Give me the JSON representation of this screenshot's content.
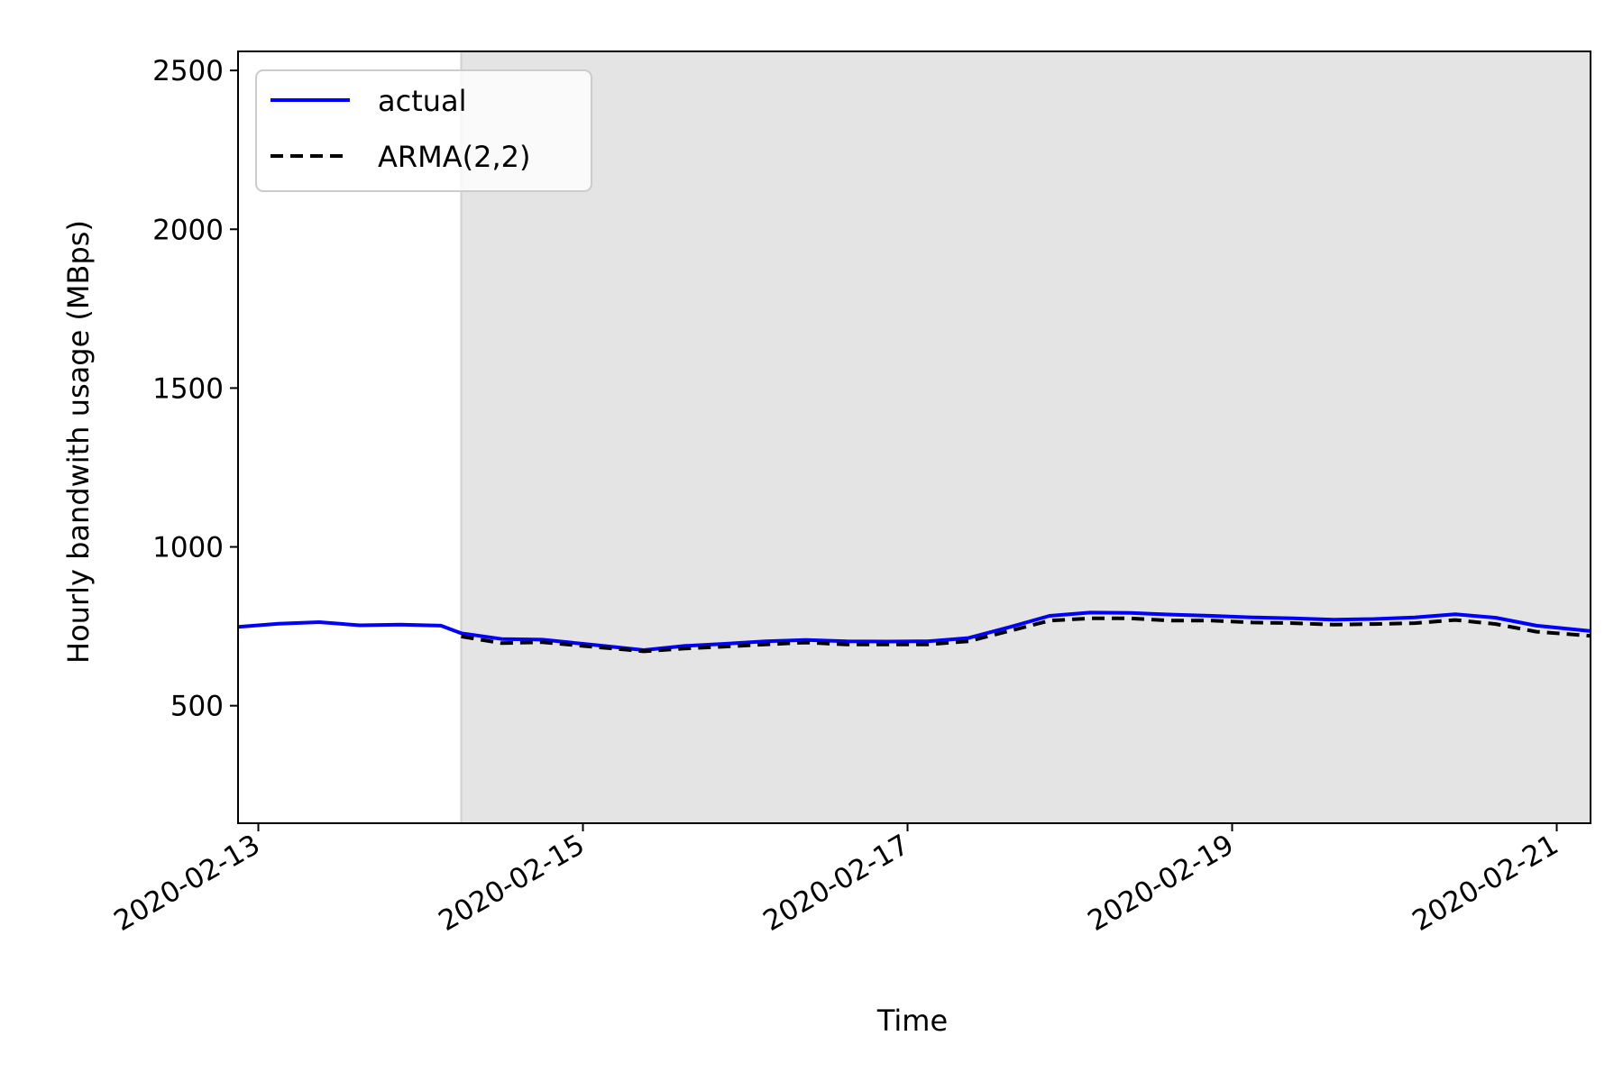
{
  "chart_data": {
    "type": "line",
    "title": "",
    "xlabel": "Time",
    "ylabel": "Hourly bandwith usage (MBps)",
    "x_tick_labels": [
      "2020-02-13",
      "2020-02-15",
      "2020-02-17",
      "2020-02-19",
      "2020-02-21"
    ],
    "y_tick_labels": [
      "500",
      "1000",
      "1500",
      "2000",
      "2500"
    ],
    "xlim": [
      "2020-02-12 21:00",
      "2020-02-21 05:00"
    ],
    "ylim": [
      130,
      2560
    ],
    "grid": false,
    "legend_position": "upper left",
    "shaded_region": {
      "from": "2020-02-14 06:00",
      "to": "2020-02-21 05:00",
      "color": "#e4e4e4"
    },
    "series": [
      {
        "name": "actual",
        "color": "#0000ff",
        "style": "solid",
        "points": [
          [
            "2020-02-12 21:00",
            748
          ],
          [
            "2020-02-13 03:00",
            758
          ],
          [
            "2020-02-13 09:00",
            763
          ],
          [
            "2020-02-13 15:00",
            753
          ],
          [
            "2020-02-13 21:00",
            755
          ],
          [
            "2020-02-14 03:00",
            752
          ],
          [
            "2020-02-14 06:00",
            728
          ],
          [
            "2020-02-14 12:00",
            710
          ],
          [
            "2020-02-14 18:00",
            708
          ],
          [
            "2020-02-15 00:00",
            695
          ],
          [
            "2020-02-15 06:00",
            682
          ],
          [
            "2020-02-15 09:00",
            675
          ],
          [
            "2020-02-15 15:00",
            688
          ],
          [
            "2020-02-15 21:00",
            695
          ],
          [
            "2020-02-16 03:00",
            703
          ],
          [
            "2020-02-16 09:00",
            707
          ],
          [
            "2020-02-16 15:00",
            703
          ],
          [
            "2020-02-16 21:00",
            702
          ],
          [
            "2020-02-17 03:00",
            703
          ],
          [
            "2020-02-17 09:00",
            713
          ],
          [
            "2020-02-17 15:00",
            747
          ],
          [
            "2020-02-17 21:00",
            783
          ],
          [
            "2020-02-18 03:00",
            793
          ],
          [
            "2020-02-18 09:00",
            792
          ],
          [
            "2020-02-18 15:00",
            787
          ],
          [
            "2020-02-18 21:00",
            783
          ],
          [
            "2020-02-19 03:00",
            778
          ],
          [
            "2020-02-19 09:00",
            775
          ],
          [
            "2020-02-19 15:00",
            771
          ],
          [
            "2020-02-19 21:00",
            773
          ],
          [
            "2020-02-20 03:00",
            778
          ],
          [
            "2020-02-20 09:00",
            788
          ],
          [
            "2020-02-20 15:00",
            777
          ],
          [
            "2020-02-20 21:00",
            752
          ],
          [
            "2020-02-21 05:00",
            735
          ]
        ]
      },
      {
        "name": "ARMA(2,2)",
        "color": "#000000",
        "style": "dashed",
        "points": [
          [
            "2020-02-14 06:00",
            718
          ],
          [
            "2020-02-14 12:00",
            697
          ],
          [
            "2020-02-14 18:00",
            700
          ],
          [
            "2020-02-15 00:00",
            688
          ],
          [
            "2020-02-15 06:00",
            677
          ],
          [
            "2020-02-15 09:00",
            671
          ],
          [
            "2020-02-15 15:00",
            680
          ],
          [
            "2020-02-15 21:00",
            686
          ],
          [
            "2020-02-16 03:00",
            693
          ],
          [
            "2020-02-16 09:00",
            699
          ],
          [
            "2020-02-16 15:00",
            693
          ],
          [
            "2020-02-16 21:00",
            693
          ],
          [
            "2020-02-17 03:00",
            693
          ],
          [
            "2020-02-17 09:00",
            703
          ],
          [
            "2020-02-17 15:00",
            735
          ],
          [
            "2020-02-17 21:00",
            768
          ],
          [
            "2020-02-18 03:00",
            775
          ],
          [
            "2020-02-18 09:00",
            775
          ],
          [
            "2020-02-18 15:00",
            768
          ],
          [
            "2020-02-18 21:00",
            768
          ],
          [
            "2020-02-19 03:00",
            762
          ],
          [
            "2020-02-19 09:00",
            760
          ],
          [
            "2020-02-19 15:00",
            755
          ],
          [
            "2020-02-19 21:00",
            757
          ],
          [
            "2020-02-20 03:00",
            760
          ],
          [
            "2020-02-20 09:00",
            770
          ],
          [
            "2020-02-20 15:00",
            757
          ],
          [
            "2020-02-20 21:00",
            733
          ],
          [
            "2020-02-21 05:00",
            720
          ]
        ]
      }
    ]
  }
}
